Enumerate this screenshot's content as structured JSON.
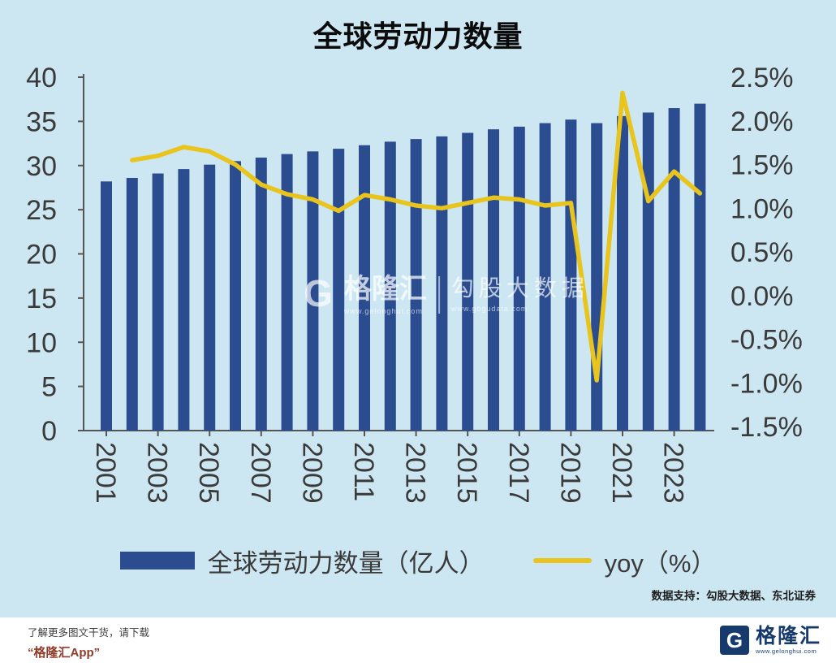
{
  "title": "全球劳动力数量",
  "chart_data": {
    "type": "bar+line",
    "categories": [
      "2001",
      "2002",
      "2003",
      "2004",
      "2005",
      "2006",
      "2007",
      "2008",
      "2009",
      "2010",
      "2011",
      "2012",
      "2013",
      "2014",
      "2015",
      "2016",
      "2017",
      "2018",
      "2019",
      "2020",
      "2021",
      "2022",
      "2023",
      "2024"
    ],
    "series": [
      {
        "name": "全球劳动力数量（亿人）",
        "type": "bar",
        "axis": "left",
        "values": [
          28.2,
          28.6,
          29.1,
          29.6,
          30.1,
          30.5,
          30.9,
          31.3,
          31.6,
          31.9,
          32.3,
          32.7,
          33.0,
          33.3,
          33.7,
          34.1,
          34.4,
          34.8,
          35.2,
          34.8,
          35.6,
          36.0,
          36.5,
          37.0
        ]
      },
      {
        "name": "yoy（%）",
        "type": "line",
        "axis": "right",
        "values": [
          null,
          1.55,
          1.6,
          1.7,
          1.65,
          1.5,
          1.27,
          1.16,
          1.1,
          0.97,
          1.15,
          1.1,
          1.03,
          1.0,
          1.06,
          1.12,
          1.1,
          1.03,
          1.06,
          -0.97,
          2.32,
          1.08,
          1.42,
          1.17
        ]
      }
    ],
    "left_axis": {
      "min": 0,
      "max": 40,
      "ticks": [
        "40",
        "35",
        "30",
        "25",
        "20",
        "15",
        "10",
        "5",
        "0"
      ]
    },
    "right_axis": {
      "min": -1.5,
      "max": 2.5,
      "ticks": [
        "2.5%",
        "2.0%",
        "1.5%",
        "1.0%",
        "0.5%",
        "0.0%",
        "-0.5%",
        "-1.0%",
        "-1.5%"
      ]
    },
    "x_labeled_years": [
      "2001",
      "2003",
      "2005",
      "2007",
      "2009",
      "2011",
      "2013",
      "2015",
      "2017",
      "2019",
      "2021",
      "2023"
    ],
    "grid": false,
    "legend_position": "bottom"
  },
  "legend": {
    "bar_label": "全球劳动力数量（亿人）",
    "line_label": "yoy（%）"
  },
  "watermark": {
    "logo_letter": "G",
    "brand": "格隆汇",
    "brand_url": "www.gelonghui.com",
    "partner": "勾股大数据",
    "partner_url": "www.gogudata.com"
  },
  "source_note": "数据支持：勾股大数据、东北证券",
  "footer": {
    "promo_line1": "了解更多图文干货，请下载",
    "promo_line2": "“格隆汇App”",
    "logo_letter": "G",
    "brand": "格隆汇",
    "brand_url": "www.gelonghui.com"
  },
  "colors": {
    "background": "#cde7f2",
    "bar": "#2b4d8f",
    "line": "#e8c41c",
    "axis_text": "#3a3a3a",
    "spine": "#555555",
    "footer_accent": "#8e3b28",
    "logo_navy": "#173a6d"
  }
}
